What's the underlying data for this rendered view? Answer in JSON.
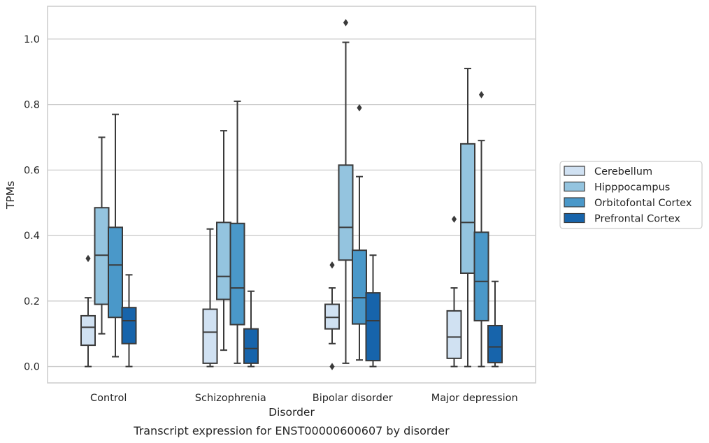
{
  "caption": "Transcript expression for ENST00000600607 by disorder",
  "chart_data": {
    "type": "box",
    "xlabel": "Disorder",
    "ylabel": "TPMs",
    "ylim": [
      -0.05,
      1.1
    ],
    "yticks": [
      0.0,
      0.2,
      0.4,
      0.6,
      0.8,
      1.0
    ],
    "ytick_labels": [
      "0.0",
      "0.2",
      "0.4",
      "0.6",
      "0.8",
      "1.0"
    ],
    "grid": true,
    "legend_position": "right",
    "categories": [
      "Control",
      "Schizophrenia",
      "Bipolar disorder",
      "Major depression"
    ],
    "series": [
      {
        "name": "Cerebellum",
        "color": "#d0e1f2",
        "boxes": [
          {
            "whislo": 0.0,
            "q1": 0.065,
            "med": 0.12,
            "q3": 0.155,
            "whishi": 0.21,
            "fliers": [
              0.33
            ]
          },
          {
            "whislo": 0.0,
            "q1": 0.01,
            "med": 0.105,
            "q3": 0.175,
            "whishi": 0.42,
            "fliers": []
          },
          {
            "whislo": 0.07,
            "q1": 0.115,
            "med": 0.15,
            "q3": 0.19,
            "whishi": 0.24,
            "fliers": [
              0.31,
              0.0
            ]
          },
          {
            "whislo": 0.0,
            "q1": 0.025,
            "med": 0.09,
            "q3": 0.17,
            "whishi": 0.24,
            "fliers": [
              0.45
            ]
          }
        ]
      },
      {
        "name": "Hipppocampus",
        "color": "#94c4df",
        "boxes": [
          {
            "whislo": 0.1,
            "q1": 0.19,
            "med": 0.34,
            "q3": 0.485,
            "whishi": 0.7,
            "fliers": []
          },
          {
            "whislo": 0.05,
            "q1": 0.205,
            "med": 0.275,
            "q3": 0.44,
            "whishi": 0.72,
            "fliers": []
          },
          {
            "whislo": 0.01,
            "q1": 0.325,
            "med": 0.425,
            "q3": 0.615,
            "whishi": 0.99,
            "fliers": [
              1.05
            ]
          },
          {
            "whislo": 0.0,
            "q1": 0.285,
            "med": 0.44,
            "q3": 0.68,
            "whishi": 0.91,
            "fliers": []
          }
        ]
      },
      {
        "name": "Orbitofontal Cortex",
        "color": "#4a98c9",
        "boxes": [
          {
            "whislo": 0.03,
            "q1": 0.15,
            "med": 0.31,
            "q3": 0.425,
            "whishi": 0.77,
            "fliers": []
          },
          {
            "whislo": 0.01,
            "q1": 0.128,
            "med": 0.24,
            "q3": 0.437,
            "whishi": 0.81,
            "fliers": []
          },
          {
            "whislo": 0.02,
            "q1": 0.13,
            "med": 0.21,
            "q3": 0.355,
            "whishi": 0.58,
            "fliers": [
              0.79
            ]
          },
          {
            "whislo": 0.0,
            "q1": 0.14,
            "med": 0.26,
            "q3": 0.41,
            "whishi": 0.69,
            "fliers": [
              0.83
            ]
          }
        ]
      },
      {
        "name": "Prefrontal Cortex",
        "color": "#1764ab",
        "boxes": [
          {
            "whislo": 0.0,
            "q1": 0.07,
            "med": 0.14,
            "q3": 0.18,
            "whishi": 0.28,
            "fliers": []
          },
          {
            "whislo": 0.0,
            "q1": 0.01,
            "med": 0.055,
            "q3": 0.115,
            "whishi": 0.23,
            "fliers": []
          },
          {
            "whislo": 0.0,
            "q1": 0.018,
            "med": 0.14,
            "q3": 0.225,
            "whishi": 0.34,
            "fliers": []
          },
          {
            "whislo": 0.0,
            "q1": 0.012,
            "med": 0.06,
            "q3": 0.125,
            "whishi": 0.26,
            "fliers": []
          }
        ]
      }
    ]
  }
}
